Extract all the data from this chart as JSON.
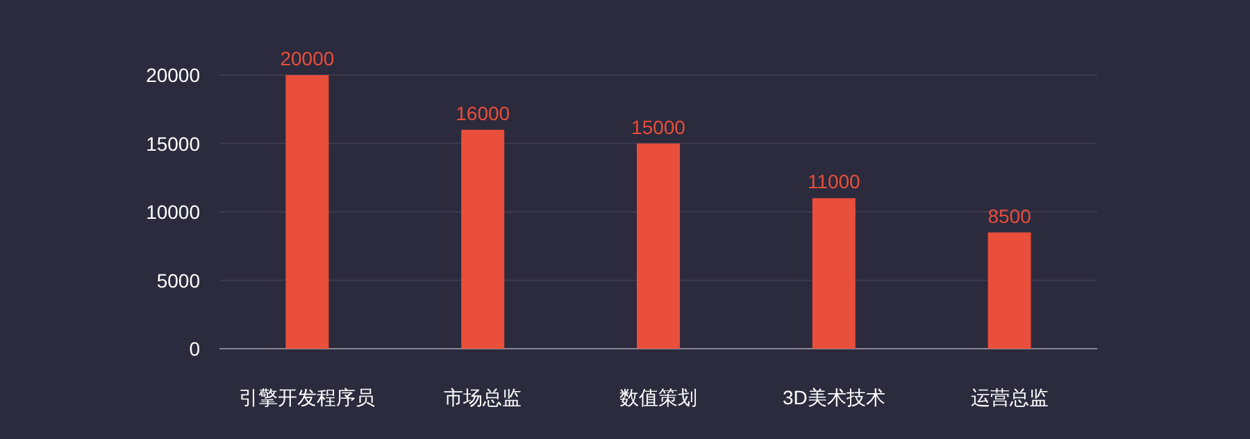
{
  "chart_data": {
    "type": "bar",
    "categories": [
      "引擎开发程序员",
      "市场总监",
      "数值策划",
      "3D美术技术",
      "运营总监"
    ],
    "values": [
      20000,
      16000,
      15000,
      11000,
      8500
    ],
    "color": "#e94f3a",
    "ylim": [
      0,
      20000
    ],
    "yticks": [
      0,
      5000,
      10000,
      15000,
      20000
    ],
    "grid": "y",
    "data_labels": true
  }
}
